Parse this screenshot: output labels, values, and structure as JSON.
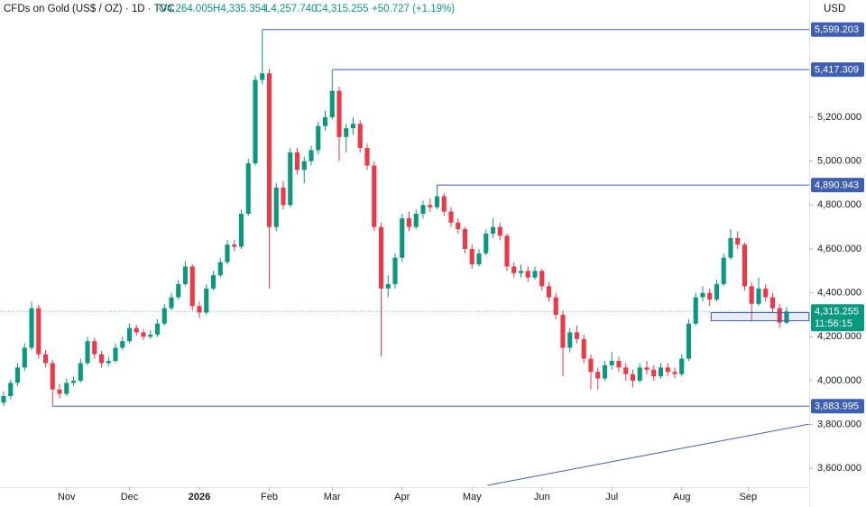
{
  "chart_data": {
    "type": "candlestick",
    "title": "CFDs on Gold (US$ / OZ) · 1D · TVC",
    "ohlc_labels": [
      "O4,264.005",
      "H4,335.354",
      "L4,257.740",
      "C4,315.255"
    ],
    "change": "+50.727 (+1.19%)",
    "currency": "USD",
    "up_color": "#089981",
    "down_color": "#f23645",
    "line_color": "#3f5fb5",
    "xlim": [
      -0.52,
      115.23
    ],
    "ylim": [
      3515,
      5734
    ],
    "xticks": [
      {
        "value": 9,
        "label": "Nov"
      },
      {
        "value": 18,
        "label": "Dec"
      },
      {
        "value": 28,
        "label": "2026"
      },
      {
        "value": 38,
        "label": "Feb"
      },
      {
        "value": 47,
        "label": "Mar"
      },
      {
        "value": 57,
        "label": "Apr"
      },
      {
        "value": 67,
        "label": "May"
      },
      {
        "value": 77,
        "label": "Jun"
      },
      {
        "value": 87,
        "label": "Jul"
      },
      {
        "value": 97,
        "label": "Aug"
      },
      {
        "value": 106.5,
        "label": "Sep"
      }
    ],
    "yticks": [
      {
        "value": 3600,
        "label": "3,600.000"
      },
      {
        "value": 3800,
        "label": "3,800.000"
      },
      {
        "value": 4000,
        "label": "4,000.000"
      },
      {
        "value": 4200,
        "label": "4,200.000"
      },
      {
        "value": 4400,
        "label": "4,400.000"
      },
      {
        "value": 4600,
        "label": "4,600.000"
      },
      {
        "value": 4800,
        "label": "4,800.000"
      },
      {
        "value": 5000,
        "label": "5,000.000"
      },
      {
        "value": 5200,
        "label": "5,200.000"
      }
    ],
    "levels": [
      {
        "value": 5599.203,
        "label": "5,599.203",
        "from": 37
      },
      {
        "value": 5417.309,
        "label": "5,417.309",
        "from": 47
      },
      {
        "value": 4890.943,
        "label": "4,890.943",
        "from": 62
      },
      {
        "value": 3883.995,
        "label": "3,883.995",
        "from": 7
      }
    ],
    "last_price": {
      "value": 4315.255,
      "label": "4,315.255",
      "countdown": "11:56:15"
    },
    "zone": {
      "x": [
        101.2,
        115.2
      ],
      "y": [
        4273,
        4310
      ]
    },
    "trendline": {
      "x": [
        69.2,
        115.2
      ],
      "y": [
        3523,
        3802
      ]
    },
    "candles": [
      [
        3900,
        3950,
        3885,
        3930
      ],
      [
        3930,
        4005,
        3915,
        3990
      ],
      [
        3990,
        4080,
        3975,
        4060
      ],
      [
        4060,
        4170,
        4045,
        4150
      ],
      [
        4150,
        4360,
        4140,
        4330
      ],
      [
        4330,
        4345,
        4100,
        4120
      ],
      [
        4120,
        4140,
        4060,
        4080
      ],
      [
        4080,
        4095,
        3883.995,
        3960
      ],
      [
        3960,
        3985,
        3920,
        3940
      ],
      [
        3940,
        4010,
        3930,
        3990
      ],
      [
        3990,
        4020,
        3975,
        4000
      ],
      [
        4000,
        4100,
        3990,
        4080
      ],
      [
        4080,
        4200,
        4070,
        4180
      ],
      [
        4180,
        4195,
        4100,
        4120
      ],
      [
        4120,
        4135,
        4060,
        4080
      ],
      [
        4080,
        4110,
        4065,
        4090
      ],
      [
        4090,
        4170,
        4080,
        4150
      ],
      [
        4150,
        4200,
        4140,
        4180
      ],
      [
        4180,
        4260,
        4170,
        4240
      ],
      [
        4240,
        4255,
        4205,
        4220
      ],
      [
        4220,
        4235,
        4185,
        4200
      ],
      [
        4200,
        4230,
        4190,
        4210
      ],
      [
        4210,
        4280,
        4200,
        4260
      ],
      [
        4260,
        4350,
        4250,
        4330
      ],
      [
        4330,
        4400,
        4320,
        4380
      ],
      [
        4380,
        4460,
        4370,
        4440
      ],
      [
        4440,
        4545,
        4430,
        4520
      ],
      [
        4520,
        4530,
        4320,
        4340
      ],
      [
        4340,
        4360,
        4285,
        4310
      ],
      [
        4310,
        4440,
        4300,
        4420
      ],
      [
        4420,
        4500,
        4410,
        4480
      ],
      [
        4480,
        4560,
        4470,
        4540
      ],
      [
        4540,
        4640,
        4530,
        4620
      ],
      [
        4620,
        4640,
        4590,
        4610
      ],
      [
        4610,
        4780,
        4600,
        4760
      ],
      [
        4760,
        5010,
        4750,
        4990
      ],
      [
        4990,
        5390,
        4980,
        5370
      ],
      [
        5370,
        5599.203,
        5350,
        5400
      ],
      [
        5400,
        5420,
        4420,
        4700
      ],
      [
        4700,
        4900,
        4680,
        4880
      ],
      [
        4880,
        4910,
        4780,
        4800
      ],
      [
        4800,
        5060,
        4790,
        5040
      ],
      [
        5040,
        5060,
        4940,
        4960
      ],
      [
        4960,
        5020,
        4900,
        5000
      ],
      [
        5000,
        5070,
        4980,
        5050
      ],
      [
        5050,
        5180,
        5030,
        5160
      ],
      [
        5160,
        5230,
        5140,
        5200
      ],
      [
        5200,
        5417.309,
        5190,
        5320
      ],
      [
        5320,
        5340,
        5000,
        5110
      ],
      [
        5110,
        5170,
        5040,
        5150
      ],
      [
        5150,
        5200,
        5120,
        5170
      ],
      [
        5170,
        5185,
        5040,
        5060
      ],
      [
        5060,
        5080,
        4960,
        4980
      ],
      [
        4980,
        5000,
        4680,
        4700
      ],
      [
        4700,
        4720,
        4110,
        4420
      ],
      [
        4420,
        4480,
        4380,
        4440
      ],
      [
        4440,
        4580,
        4420,
        4560
      ],
      [
        4560,
        4760,
        4540,
        4740
      ],
      [
        4740,
        4770,
        4680,
        4700
      ],
      [
        4700,
        4780,
        4690,
        4760
      ],
      [
        4760,
        4820,
        4740,
        4800
      ],
      [
        4800,
        4830,
        4770,
        4790
      ],
      [
        4790,
        4890.943,
        4780,
        4840
      ],
      [
        4840,
        4855,
        4750,
        4770
      ],
      [
        4770,
        4790,
        4700,
        4720
      ],
      [
        4720,
        4740,
        4670,
        4690
      ],
      [
        4690,
        4700,
        4580,
        4600
      ],
      [
        4600,
        4620,
        4510,
        4530
      ],
      [
        4530,
        4600,
        4520,
        4580
      ],
      [
        4580,
        4690,
        4570,
        4670
      ],
      [
        4670,
        4740,
        4650,
        4700
      ],
      [
        4700,
        4720,
        4640,
        4660
      ],
      [
        4660,
        4670,
        4500,
        4520
      ],
      [
        4520,
        4540,
        4470,
        4490
      ],
      [
        4490,
        4530,
        4470,
        4500
      ],
      [
        4500,
        4520,
        4450,
        4470
      ],
      [
        4470,
        4520,
        4460,
        4500
      ],
      [
        4500,
        4510,
        4410,
        4430
      ],
      [
        4430,
        4450,
        4360,
        4380
      ],
      [
        4380,
        4400,
        4280,
        4300
      ],
      [
        4300,
        4320,
        4020,
        4150
      ],
      [
        4150,
        4240,
        4130,
        4220
      ],
      [
        4220,
        4250,
        4170,
        4190
      ],
      [
        4190,
        4210,
        4080,
        4100
      ],
      [
        4100,
        4120,
        3960,
        4040
      ],
      [
        4040,
        4060,
        3960,
        4010
      ],
      [
        4010,
        4090,
        4000,
        4070
      ],
      [
        4070,
        4130,
        4050,
        4090
      ],
      [
        4090,
        4110,
        4040,
        4060
      ],
      [
        4060,
        4080,
        4000,
        4030
      ],
      [
        4030,
        4050,
        3970,
        4000
      ],
      [
        4000,
        4080,
        3990,
        4060
      ],
      [
        4060,
        4090,
        4030,
        4050
      ],
      [
        4050,
        4070,
        4000,
        4020
      ],
      [
        4020,
        4080,
        4010,
        4060
      ],
      [
        4060,
        4080,
        4020,
        4040
      ],
      [
        4040,
        4060,
        4010,
        4030
      ],
      [
        4030,
        4120,
        4020,
        4100
      ],
      [
        4100,
        4280,
        4090,
        4260
      ],
      [
        4260,
        4400,
        4250,
        4380
      ],
      [
        4380,
        4430,
        4360,
        4400
      ],
      [
        4400,
        4420,
        4340,
        4370
      ],
      [
        4370,
        4460,
        4360,
        4440
      ],
      [
        4440,
        4580,
        4430,
        4560
      ],
      [
        4560,
        4690,
        4550,
        4650
      ],
      [
        4650,
        4680,
        4600,
        4620
      ],
      [
        4620,
        4630,
        4410,
        4430
      ],
      [
        4430,
        4450,
        4270,
        4350
      ],
      [
        4350,
        4470,
        4340,
        4420
      ],
      [
        4420,
        4440,
        4360,
        4380
      ],
      [
        4380,
        4400,
        4310,
        4330
      ],
      [
        4330,
        4350,
        4240,
        4264.005
      ],
      [
        4264.005,
        4335.354,
        4257.74,
        4315.255
      ]
    ]
  }
}
